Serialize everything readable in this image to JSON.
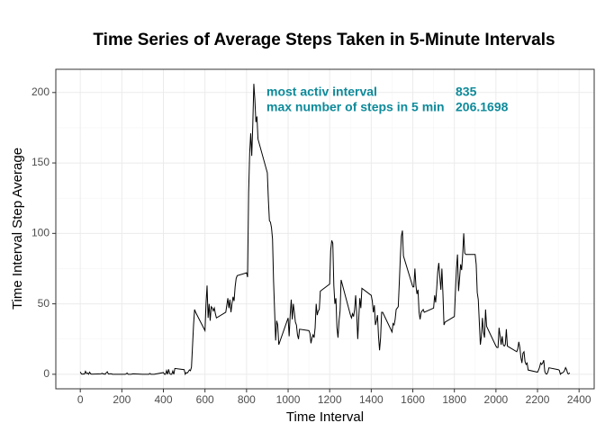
{
  "chart_data": {
    "type": "line",
    "title": "Time Series of Average Steps Taken in 5-Minute Intervals",
    "x_label": "Time Interval",
    "y_label": "Time Interval Step Average",
    "color": "#000000",
    "annotation_color": "#0e8a9a",
    "annotations": [
      {
        "text": "most activ interval",
        "value_text": "835"
      },
      {
        "text": "max number of steps in 5 min",
        "value_text": "206.1698"
      }
    ],
    "grid": true,
    "xlim": [
      -117.75,
      2472.75
    ],
    "ylim": [
      -10.31,
      216.48
    ],
    "xticks": [
      0,
      200,
      400,
      600,
      800,
      1000,
      1200,
      1400,
      1600,
      1800,
      2000,
      2200,
      2400
    ],
    "yticks": [
      0,
      50,
      100,
      150,
      200
    ],
    "xminor": [
      100,
      300,
      500,
      700,
      900,
      1100,
      1300,
      1500,
      1700,
      1900,
      2100,
      2300
    ],
    "yminor": [
      25,
      75,
      125,
      175
    ],
    "x": [
      0,
      5,
      10,
      15,
      20,
      25,
      30,
      35,
      40,
      45,
      50,
      55,
      100,
      105,
      110,
      115,
      120,
      125,
      130,
      135,
      140,
      145,
      150,
      155,
      200,
      205,
      210,
      215,
      220,
      225,
      230,
      235,
      240,
      245,
      250,
      255,
      300,
      305,
      310,
      315,
      320,
      325,
      330,
      335,
      340,
      345,
      350,
      355,
      400,
      405,
      410,
      415,
      420,
      425,
      430,
      435,
      440,
      445,
      450,
      455,
      500,
      505,
      510,
      515,
      520,
      525,
      530,
      535,
      540,
      545,
      550,
      555,
      600,
      605,
      610,
      615,
      620,
      625,
      630,
      635,
      640,
      645,
      650,
      655,
      700,
      705,
      710,
      715,
      720,
      725,
      730,
      735,
      740,
      745,
      750,
      755,
      800,
      805,
      810,
      815,
      820,
      825,
      830,
      835,
      840,
      845,
      850,
      855,
      900,
      905,
      910,
      915,
      920,
      925,
      930,
      935,
      940,
      945,
      950,
      955,
      1000,
      1005,
      1010,
      1015,
      1020,
      1025,
      1030,
      1035,
      1040,
      1045,
      1050,
      1055,
      1100,
      1105,
      1110,
      1115,
      1120,
      1125,
      1130,
      1135,
      1140,
      1145,
      1150,
      1155,
      1200,
      1205,
      1210,
      1215,
      1220,
      1225,
      1230,
      1235,
      1240,
      1245,
      1250,
      1255,
      1300,
      1305,
      1310,
      1315,
      1320,
      1325,
      1330,
      1335,
      1340,
      1345,
      1350,
      1355,
      1400,
      1405,
      1410,
      1415,
      1420,
      1425,
      1430,
      1435,
      1440,
      1445,
      1450,
      1455,
      1500,
      1505,
      1510,
      1515,
      1520,
      1525,
      1530,
      1535,
      1540,
      1545,
      1550,
      1555,
      1600,
      1605,
      1610,
      1615,
      1620,
      1625,
      1630,
      1635,
      1640,
      1645,
      1650,
      1655,
      1700,
      1705,
      1710,
      1715,
      1720,
      1725,
      1730,
      1735,
      1740,
      1745,
      1750,
      1755,
      1800,
      1805,
      1810,
      1815,
      1820,
      1825,
      1830,
      1835,
      1840,
      1845,
      1850,
      1855,
      1900,
      1905,
      1910,
      1915,
      1920,
      1925,
      1930,
      1935,
      1940,
      1945,
      1950,
      1955,
      2000,
      2005,
      2010,
      2015,
      2020,
      2025,
      2030,
      2035,
      2040,
      2045,
      2050,
      2055,
      2100,
      2105,
      2110,
      2115,
      2120,
      2125,
      2130,
      2135,
      2140,
      2145,
      2150,
      2155,
      2200,
      2205,
      2210,
      2215,
      2220,
      2225,
      2230,
      2235,
      2240,
      2245,
      2250,
      2255,
      2300,
      2305,
      2310,
      2315,
      2320,
      2325,
      2330,
      2335,
      2340,
      2345,
      2350,
      2355
    ],
    "values": [
      1.7,
      0.3,
      0.1,
      0.2,
      0.1,
      2.1,
      0.5,
      0.9,
      0,
      1.5,
      0.3,
      0.1,
      0.3,
      0.7,
      0.2,
      0.3,
      0,
      1.1,
      1.8,
      0.2,
      0.2,
      0.4,
      0.3,
      0,
      0,
      0,
      0,
      0,
      0.2,
      0.9,
      0,
      0,
      0,
      0,
      0.2,
      0.3,
      0,
      0,
      0,
      0,
      0,
      0,
      0,
      0.6,
      0,
      0,
      0,
      0,
      1.2,
      0,
      0,
      2.6,
      0,
      3.5,
      0.5,
      0,
      0,
      2.3,
      0,
      4.1,
      3.3,
      0,
      1.2,
      0.9,
      1.9,
      3.1,
      2.5,
      5,
      20,
      35,
      46,
      44,
      31,
      50,
      63,
      40,
      50,
      38,
      48,
      47,
      45,
      47,
      43,
      40,
      44,
      49,
      54,
      47,
      53,
      44,
      50,
      55,
      52,
      62,
      68,
      70,
      72,
      69,
      129,
      157,
      171,
      155,
      177,
      206.1698,
      195,
      179,
      183,
      167,
      143,
      124,
      109,
      108,
      104,
      96,
      66,
      45,
      24,
      38,
      35,
      21,
      40,
      27,
      42,
      53,
      39,
      50,
      44,
      37,
      35,
      28,
      25,
      32,
      31,
      29,
      22,
      26,
      28,
      26,
      33,
      50,
      42,
      45,
      46,
      59,
      64,
      88,
      95,
      93,
      63,
      50,
      54,
      33,
      26,
      38,
      45,
      67,
      42,
      40,
      43,
      41,
      46,
      56,
      43,
      25,
      40,
      54,
      47,
      61,
      56,
      52,
      44,
      49,
      35,
      38,
      42,
      27,
      17,
      26,
      44,
      44,
      30,
      36,
      35,
      39,
      46,
      47,
      48,
      65,
      83,
      98,
      102,
      84,
      62,
      62,
      75,
      63,
      57,
      60,
      44,
      39,
      44,
      45,
      46,
      44,
      47,
      56,
      51,
      61,
      73,
      79,
      69,
      60,
      75,
      57,
      35,
      37,
      41,
      58,
      75,
      85,
      59,
      68,
      78,
      74,
      85,
      100,
      86,
      85,
      85,
      78,
      58,
      53,
      37,
      21,
      27,
      40,
      30,
      26,
      46,
      34,
      20,
      19,
      19,
      33,
      27,
      21,
      27,
      21,
      20,
      21,
      32,
      20,
      16,
      18,
      23,
      19,
      12,
      8,
      15,
      16,
      9,
      7,
      8,
      3,
      1.5,
      3,
      5,
      8,
      7,
      8,
      10,
      2,
      0.3,
      0.1,
      1.6,
      4.6,
      3.3,
      2.8,
      0,
      0.8,
      1,
      1.6,
      2.6,
      4.7,
      3.3,
      0.6,
      0.2,
      1.1
    ]
  }
}
